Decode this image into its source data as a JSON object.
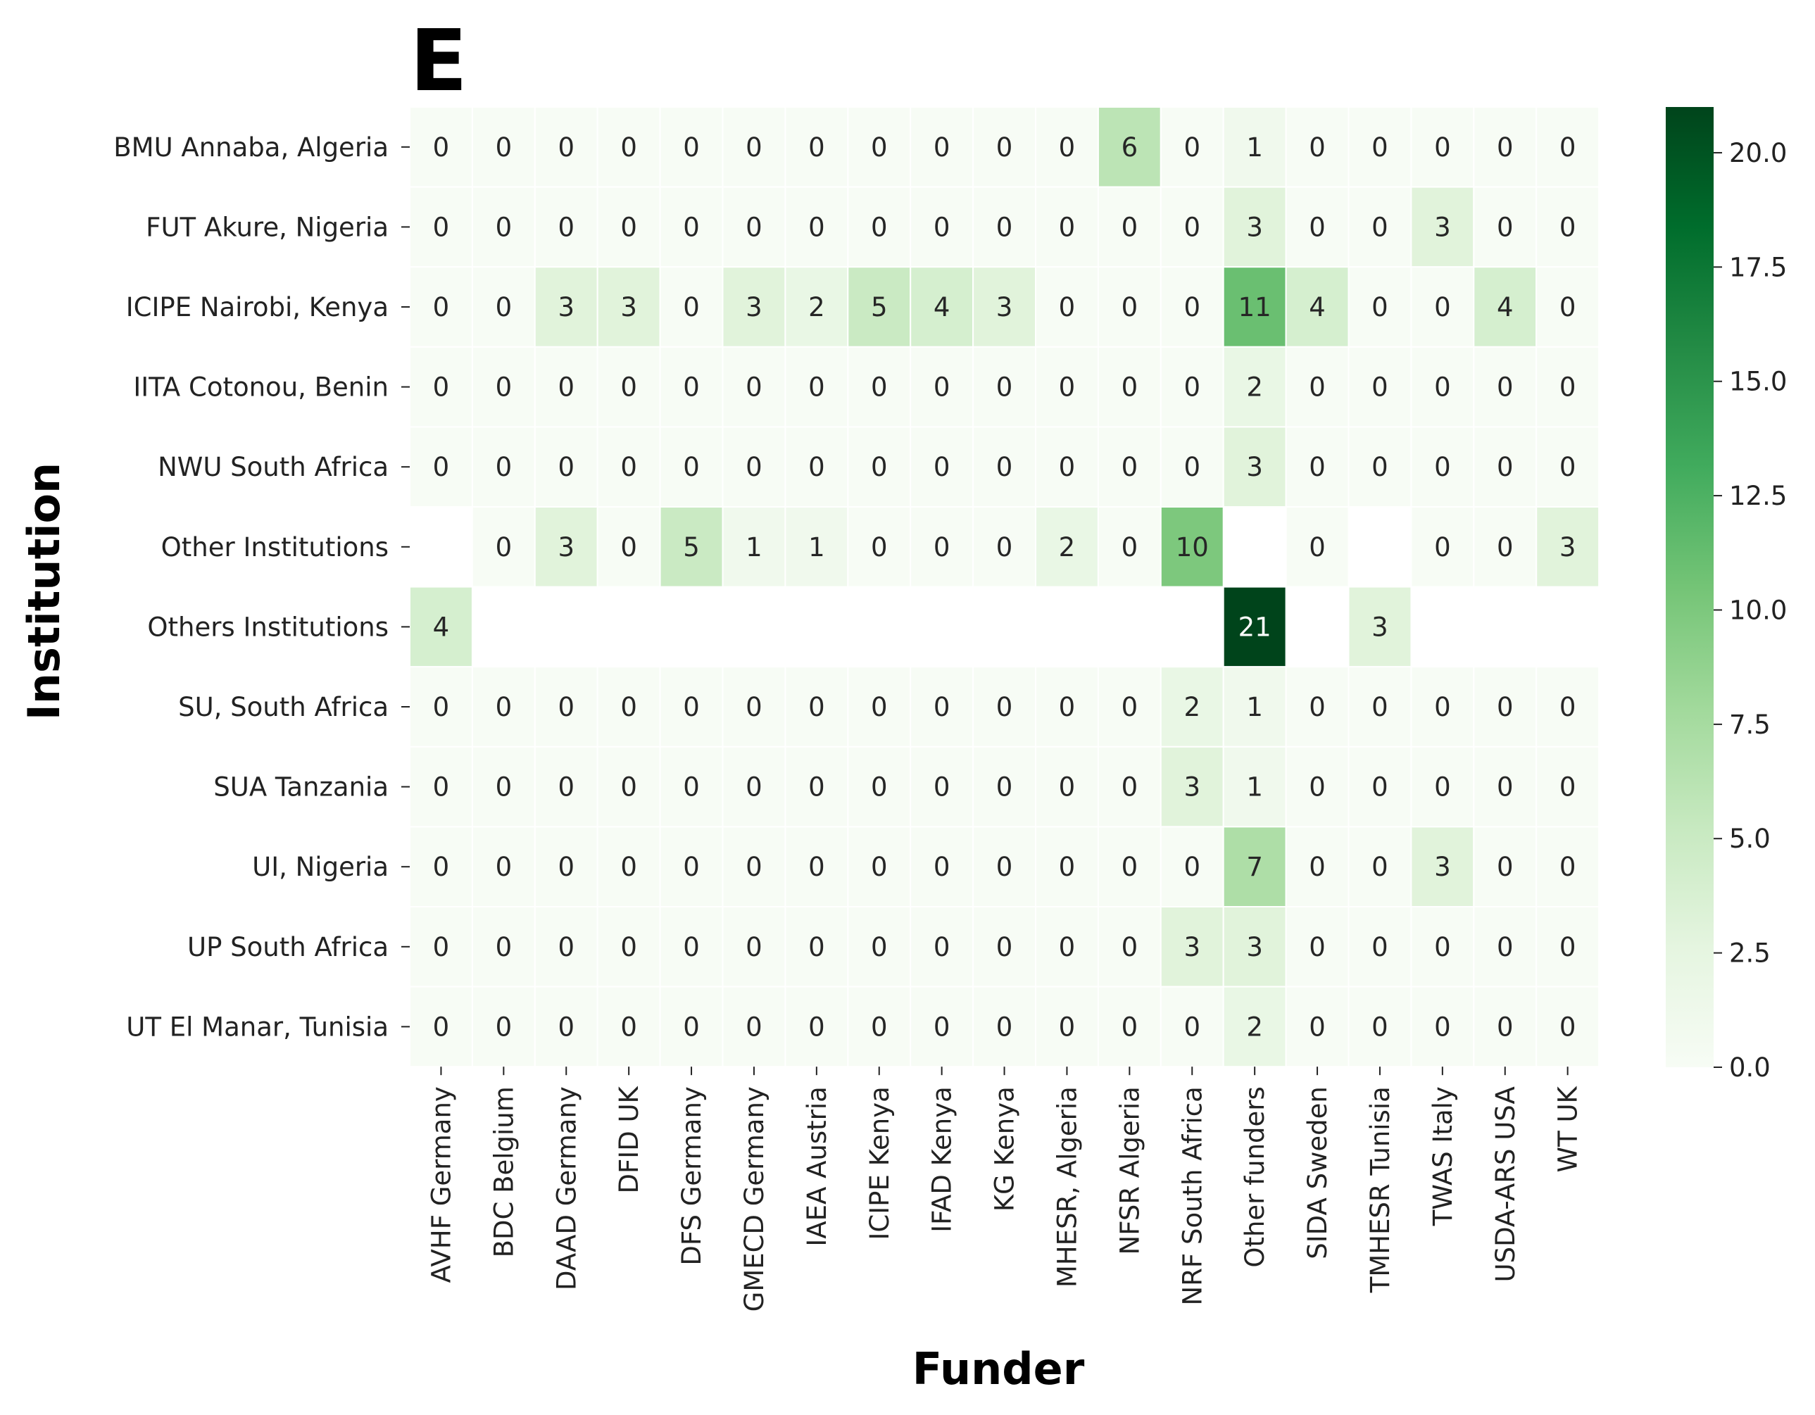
{
  "panel_label": "E",
  "chart_data": {
    "type": "heatmap",
    "xlabel": "Funder",
    "ylabel": "Institution",
    "x_categories": [
      "AVHF Germany",
      "BDC Belgium",
      "DAAD Germany",
      "DFID UK",
      "DFS Germany",
      "GMECD Germany",
      "IAEA Austria",
      "ICIPE Kenya",
      "IFAD Kenya",
      "KG Kenya",
      "MHESR, Algeria",
      "NFSR Algeria",
      "NRF South Africa",
      "Other funders",
      "SIDA Sweden",
      "TMHESR Tunisia",
      "TWAS Italy",
      "USDA-ARS USA",
      "WT UK"
    ],
    "y_categories": [
      "BMU Annaba, Algeria",
      "FUT Akure, Nigeria",
      "ICIPE Nairobi, Kenya",
      "IITA Cotonou, Benin",
      "NWU South Africa",
      "Other Institutions",
      "Others Institutions",
      "SU, South Africa",
      "SUA Tanzania",
      "UI, Nigeria",
      "UP South Africa",
      "UT El Manar, Tunisia"
    ],
    "values": [
      [
        0,
        0,
        0,
        0,
        0,
        0,
        0,
        0,
        0,
        0,
        0,
        6,
        0,
        1,
        0,
        0,
        0,
        0,
        0
      ],
      [
        0,
        0,
        0,
        0,
        0,
        0,
        0,
        0,
        0,
        0,
        0,
        0,
        0,
        3,
        0,
        0,
        3,
        0,
        0
      ],
      [
        0,
        0,
        3,
        3,
        0,
        3,
        2,
        5,
        4,
        3,
        0,
        0,
        0,
        11,
        4,
        0,
        0,
        4,
        0
      ],
      [
        0,
        0,
        0,
        0,
        0,
        0,
        0,
        0,
        0,
        0,
        0,
        0,
        0,
        2,
        0,
        0,
        0,
        0,
        0
      ],
      [
        0,
        0,
        0,
        0,
        0,
        0,
        0,
        0,
        0,
        0,
        0,
        0,
        0,
        3,
        0,
        0,
        0,
        0,
        0
      ],
      [
        null,
        0,
        3,
        0,
        5,
        1,
        1,
        0,
        0,
        0,
        2,
        0,
        10,
        null,
        0,
        null,
        0,
        0,
        3
      ],
      [
        4,
        null,
        null,
        null,
        null,
        null,
        null,
        null,
        null,
        null,
        null,
        null,
        null,
        21,
        null,
        3,
        null,
        null,
        null
      ],
      [
        0,
        0,
        0,
        0,
        0,
        0,
        0,
        0,
        0,
        0,
        0,
        0,
        2,
        1,
        0,
        0,
        0,
        0,
        0
      ],
      [
        0,
        0,
        0,
        0,
        0,
        0,
        0,
        0,
        0,
        0,
        0,
        0,
        3,
        1,
        0,
        0,
        0,
        0,
        0
      ],
      [
        0,
        0,
        0,
        0,
        0,
        0,
        0,
        0,
        0,
        0,
        0,
        0,
        0,
        7,
        0,
        0,
        3,
        0,
        0
      ],
      [
        0,
        0,
        0,
        0,
        0,
        0,
        0,
        0,
        0,
        0,
        0,
        0,
        3,
        3,
        0,
        0,
        0,
        0,
        0
      ],
      [
        0,
        0,
        0,
        0,
        0,
        0,
        0,
        0,
        0,
        0,
        0,
        0,
        0,
        2,
        0,
        0,
        0,
        0,
        0
      ]
    ],
    "colorbar": {
      "range": [
        0,
        21
      ],
      "ticks": [
        0,
        2.5,
        5,
        7.5,
        10,
        12.5,
        15,
        17.5,
        20
      ],
      "tick_labels": [
        "0.0",
        "2.5",
        "5.0",
        "7.5",
        "10.0",
        "12.5",
        "15.0",
        "17.5",
        "20.0"
      ],
      "colormap": "Greens"
    },
    "colors": {
      "greens_stops": [
        "#f7fcf5",
        "#e5f5e0",
        "#c7e9c0",
        "#a1d99b",
        "#74c476",
        "#41ab5d",
        "#238b45",
        "#006d2c",
        "#00441b"
      ],
      "text_dark": "#262626",
      "text_light": "#ffffff",
      "grid_line": "#ffffff"
    }
  }
}
